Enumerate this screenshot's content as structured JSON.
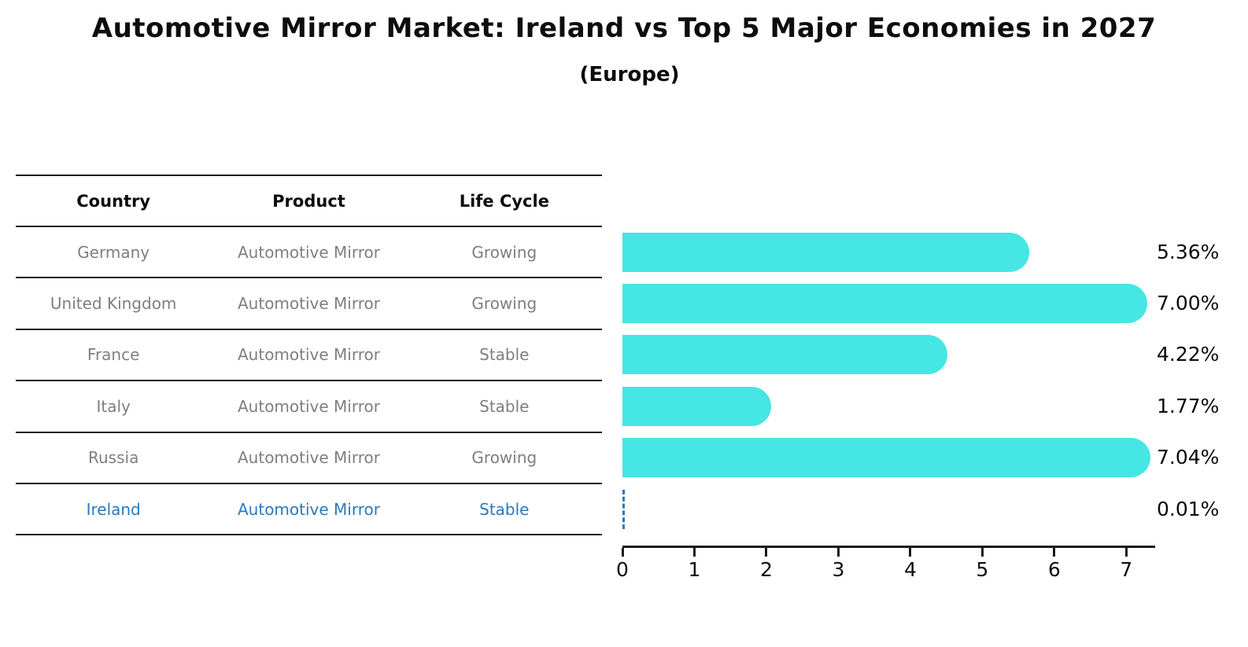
{
  "title": "Automotive Mirror Market: Ireland vs Top 5 Major Economies in 2027",
  "subtitle": "(Europe)",
  "table": {
    "headers": [
      "Country",
      "Product",
      "Life Cycle"
    ],
    "rows": [
      {
        "country": "Germany",
        "product": "Automotive Mirror",
        "life_cycle": "Growing",
        "highlighted": false
      },
      {
        "country": "United Kingdom",
        "product": "Automotive Mirror",
        "life_cycle": "Growing",
        "highlighted": false
      },
      {
        "country": "France",
        "product": "Automotive Mirror",
        "life_cycle": "Stable",
        "highlighted": false
      },
      {
        "country": "Italy",
        "product": "Automotive Mirror",
        "life_cycle": "Stable",
        "highlighted": false
      },
      {
        "country": "Russia",
        "product": "Automotive Mirror",
        "life_cycle": "Growing",
        "highlighted": false
      },
      {
        "country": "Ireland",
        "product": "Automotive Mirror",
        "life_cycle": "Stable",
        "highlighted": true
      }
    ]
  },
  "chart_data": {
    "type": "bar",
    "orientation": "horizontal",
    "title": "Automotive Mirror Market: Ireland vs Top 5 Major Economies in 2027 (Europe)",
    "categories": [
      "Germany",
      "United Kingdom",
      "France",
      "Italy",
      "Russia",
      "Ireland"
    ],
    "values": [
      5.36,
      7.0,
      4.22,
      1.77,
      7.04,
      0.01
    ],
    "value_labels": [
      "5.36%",
      "7.00%",
      "4.22%",
      "1.77%",
      "7.04%",
      "0.01%"
    ],
    "x_ticks": [
      0,
      1,
      2,
      3,
      4,
      5,
      6,
      7
    ],
    "xlim": [
      0,
      7.39
    ],
    "xlabel": "",
    "ylabel": "",
    "grid": false,
    "legend": false,
    "bar_color": "#45E6E3",
    "highlight_dash_color": "#3079B8",
    "highlight_text_color": "#2979BE"
  }
}
